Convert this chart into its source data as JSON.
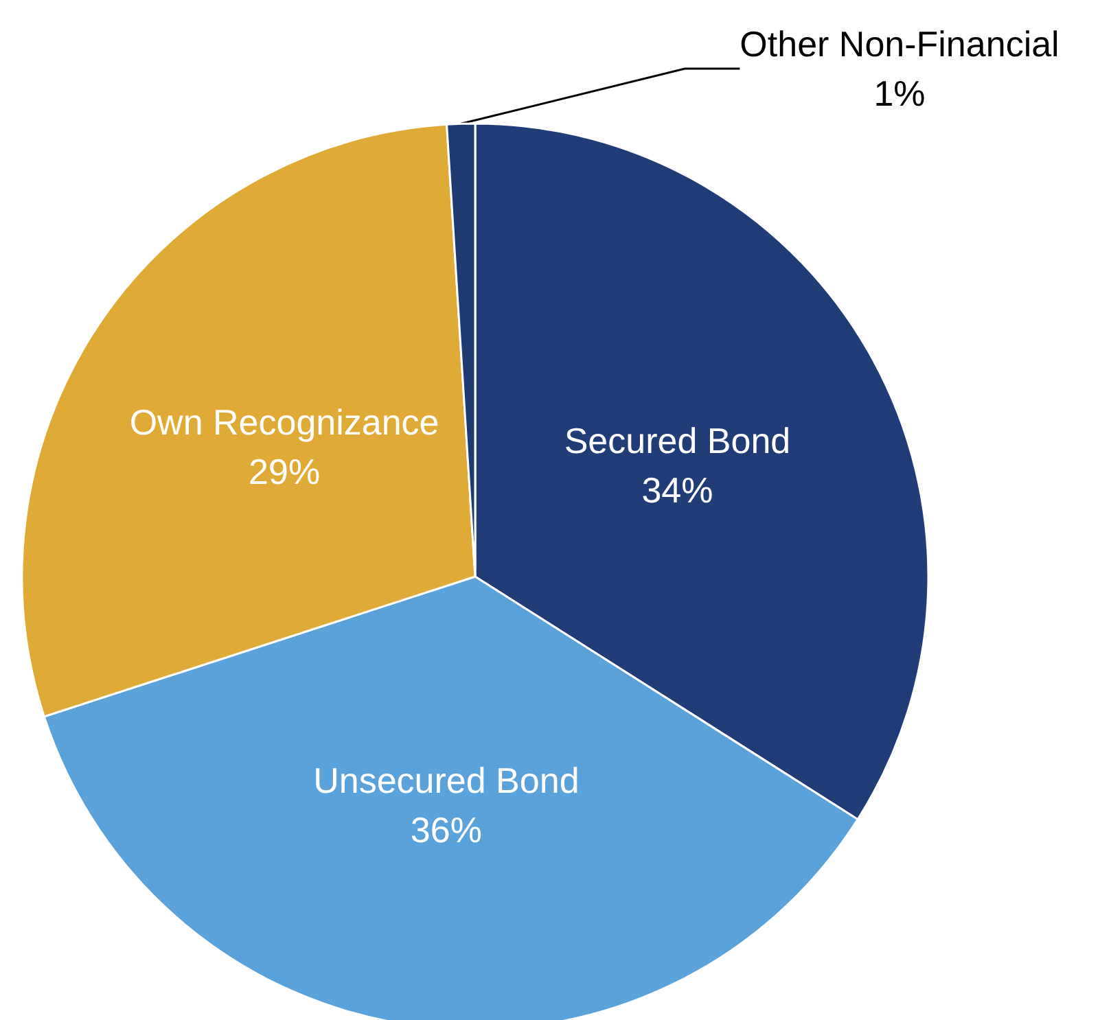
{
  "chart_data": {
    "type": "pie",
    "categories": [
      "Secured Bond",
      "Unsecured Bond",
      "Own Recognizance",
      "Other Non-Financial"
    ],
    "values": [
      34,
      36,
      29,
      1
    ],
    "colors": [
      "#213d78",
      "#5ba2da",
      "#e0aa37",
      "#1d3a73"
    ],
    "value_labels": [
      "34%",
      "36%",
      "29%",
      "1%"
    ],
    "legend": false
  }
}
